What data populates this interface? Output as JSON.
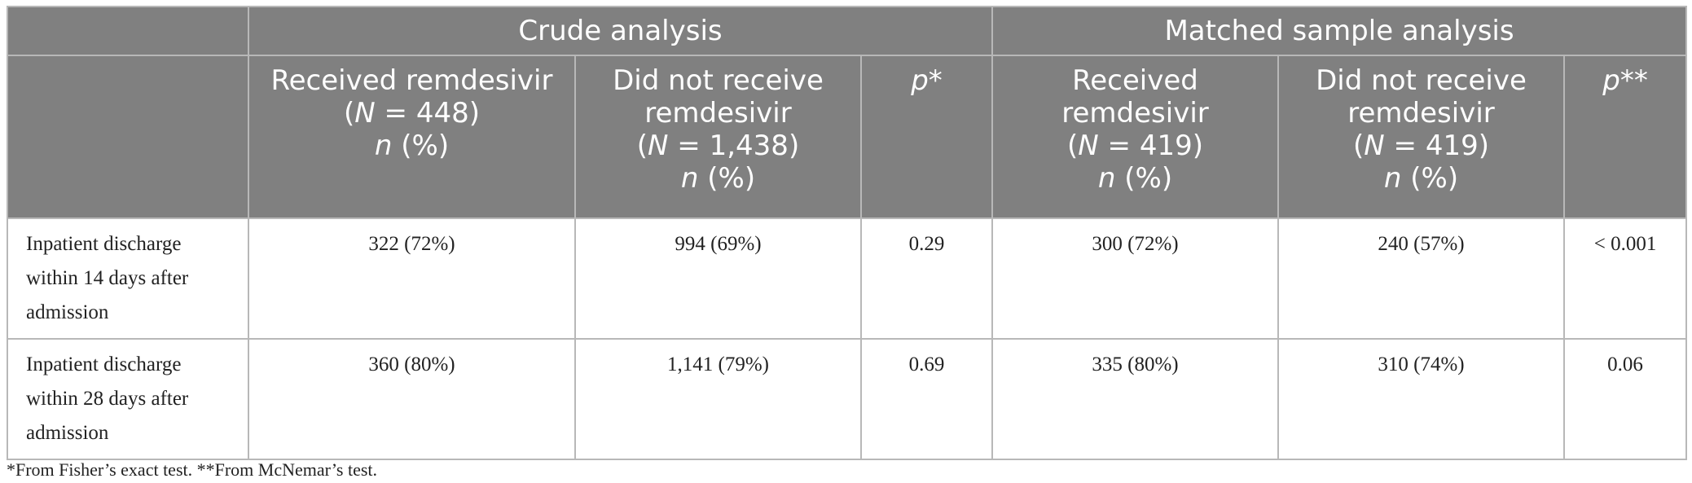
{
  "table": {
    "groups": {
      "crude": "Crude analysis",
      "matched": "Matched sample analysis"
    },
    "crude_cols": {
      "received": {
        "name": "Received remdesivir",
        "n_label": "N",
        "n_value": "448",
        "unit": "(%)"
      },
      "not_received": {
        "name_line1": "Did not receive",
        "name_line2": "remdesivir",
        "n_label": "N",
        "n_value": "1,438",
        "unit": "(%)"
      },
      "p": "p*"
    },
    "matched_cols": {
      "received": {
        "name_line1": "Received",
        "name_line2": "remdesivir",
        "n_label": "N",
        "n_value": "419",
        "unit": "(%)"
      },
      "not_received": {
        "name_line1": "Did not receive",
        "name_line2": "remdesivir",
        "n_label": "N",
        "n_value": "419",
        "unit": "(%)"
      },
      "p": "p**"
    },
    "rows": [
      {
        "label_line1": "Inpatient discharge",
        "label_line2": "within 14 days after",
        "label_line3": "admission",
        "crude_received": "322 (72%)",
        "crude_not_received": "994 (69%)",
        "crude_p": "0.29",
        "matched_received": "300 (72%)",
        "matched_not_received": "240 (57%)",
        "matched_p": "< 0.001"
      },
      {
        "label_line1": "Inpatient discharge",
        "label_line2": "within 28 days after",
        "label_line3": "admission",
        "crude_received": "360 (80%)",
        "crude_not_received": "1,141 (79%)",
        "crude_p": "0.69",
        "matched_received": "335 (80%)",
        "matched_not_received": "310 (74%)",
        "matched_p": "0.06"
      }
    ]
  },
  "footnote": "*From Fisher’s exact test. **From McNemar’s test."
}
